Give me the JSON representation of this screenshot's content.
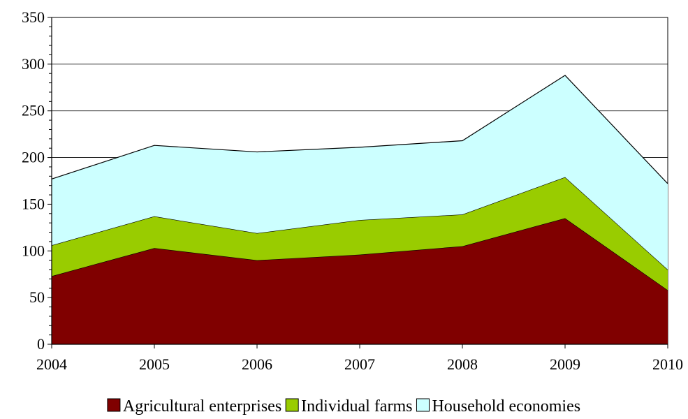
{
  "chart_data": {
    "type": "area",
    "stacked": true,
    "x": [
      "2004",
      "2005",
      "2006",
      "2007",
      "2008",
      "2009",
      "2010"
    ],
    "ylim": [
      0,
      350
    ],
    "yticks": [
      "0",
      "50",
      "100",
      "150",
      "200",
      "250",
      "300",
      "350"
    ],
    "grid": true,
    "legend_position": "bottom",
    "series": [
      {
        "name": "Agricultural enterprises",
        "color": "#800000",
        "values": [
          73,
          103,
          90,
          96,
          105,
          135,
          58
        ]
      },
      {
        "name": "Individual farms",
        "color": "#99cc00",
        "values": [
          33,
          34,
          29,
          37,
          34,
          44,
          22
        ]
      },
      {
        "name": "Household economies",
        "color": "#ccffff",
        "values": [
          71,
          76,
          87,
          78,
          79,
          109,
          92
        ]
      }
    ]
  }
}
